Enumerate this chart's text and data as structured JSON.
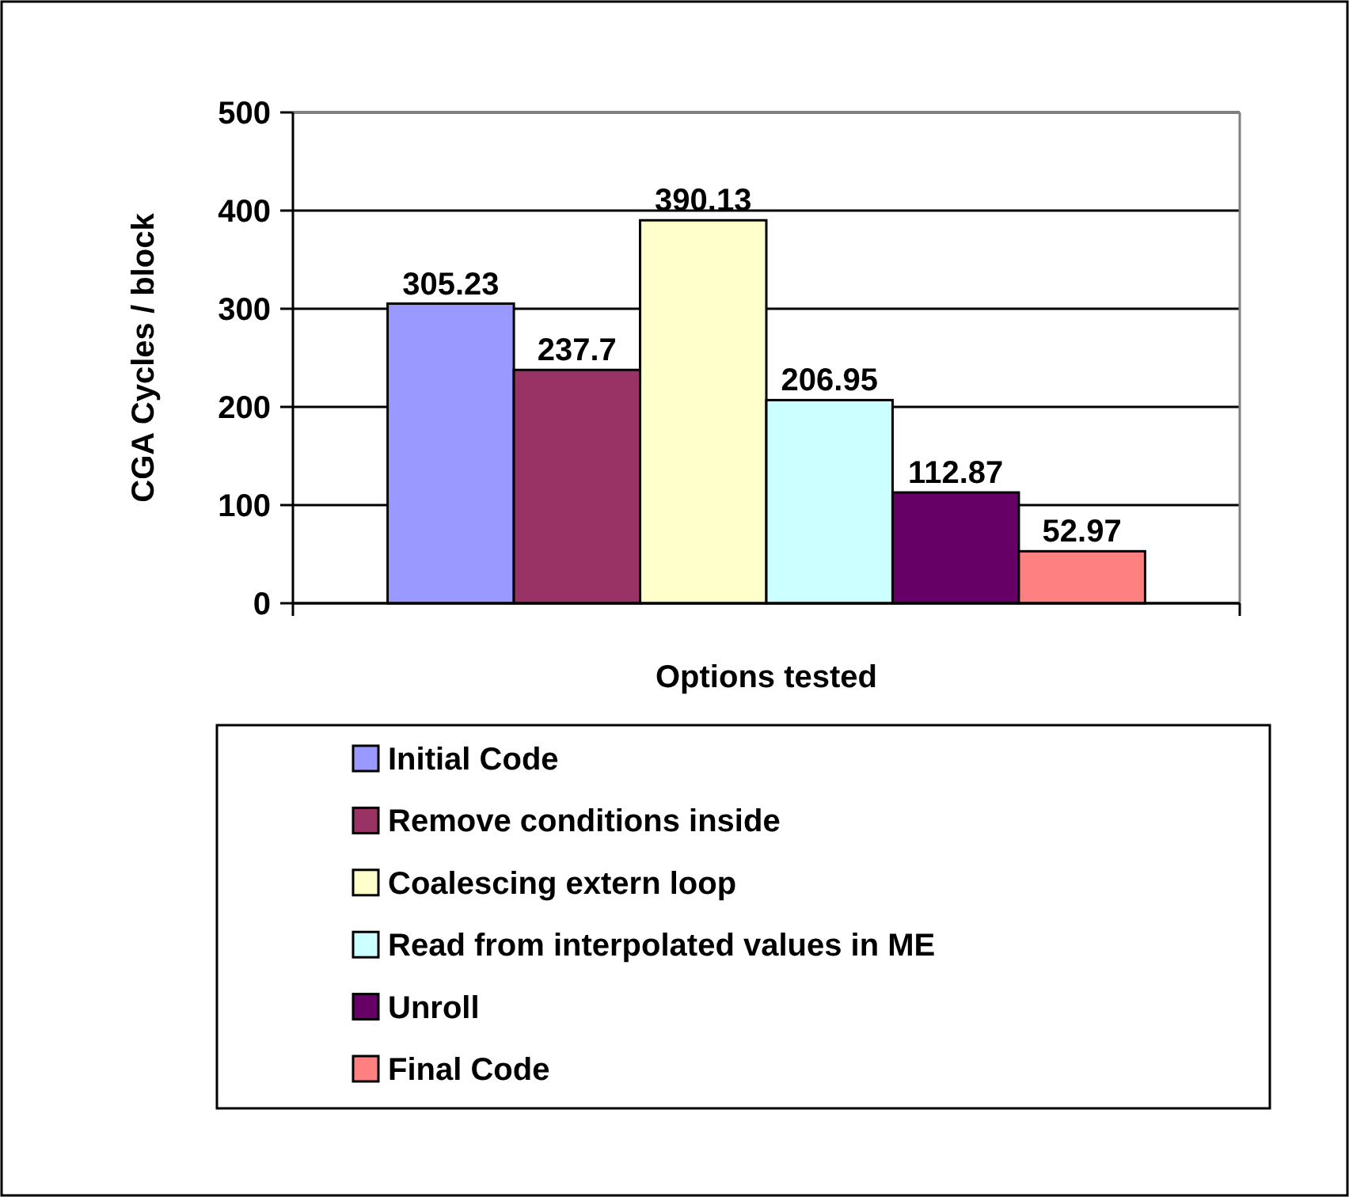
{
  "chart_data": {
    "type": "bar",
    "xlabel": "Options tested",
    "ylabel": "CGA Cycles / block",
    "categories": [
      null
    ],
    "series": [
      {
        "name": "Initial Code",
        "color": "#9999ff",
        "values": [
          305.23
        ]
      },
      {
        "name": "Remove conditions inside",
        "color": "#993366",
        "values": [
          237.7
        ]
      },
      {
        "name": "Coalescing extern loop",
        "color": "#ffffcc",
        "values": [
          390.13
        ]
      },
      {
        "name": "Read from interpolated values in ME",
        "color": "#ccffff",
        "values": [
          206.95
        ]
      },
      {
        "name": "Unroll",
        "color": "#660066",
        "values": [
          112.87
        ]
      },
      {
        "name": "Final Code",
        "color": "#ff8080",
        "values": [
          52.97
        ]
      }
    ],
    "ylim": [
      0,
      500
    ],
    "yticks": [
      0,
      100,
      200,
      300,
      400,
      500
    ],
    "grid": "y",
    "legend": "bottom",
    "data_labels": true
  }
}
